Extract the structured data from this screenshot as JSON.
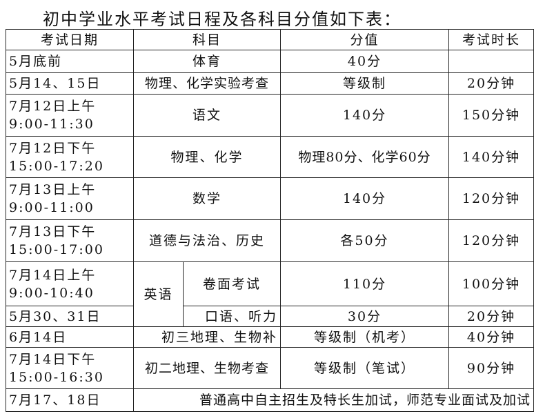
{
  "title": "初中学业水平考试日程及各科目分值如下表：",
  "header": [
    "考试日期",
    "科目",
    "分值",
    "考试时长"
  ],
  "rows": [
    {
      "date": "5月底前",
      "subject": "体育",
      "score": "40分",
      "duration": ""
    },
    {
      "date": "5月14、15日",
      "subject": "物理、化学实验考查",
      "score": "等级制",
      "duration": "20分钟"
    },
    {
      "date": "7月12日上午",
      "time": "9:00-11:30",
      "subject": "语文",
      "score": "140分",
      "duration": "150分钟"
    },
    {
      "date": "7月12日下午",
      "time": "15:00-17:20",
      "subject": "物理、化学",
      "score": "物理80分、化学60分",
      "duration": "140分钟"
    },
    {
      "date": "7月13日上午",
      "time": "9:00-11:00",
      "subject": "数学",
      "score": "140分",
      "duration": "120分钟"
    },
    {
      "date": "7月13日下午",
      "time": "15:00-17:00",
      "subject": "道德与法治、历史",
      "score": "各50分",
      "duration": "120分钟"
    },
    {
      "date": "7月14日上午",
      "time": "9:00-10:40",
      "subject_group": "英语",
      "subject": "卷面考试",
      "score": "110分",
      "duration": "100分钟"
    },
    {
      "date": "5月30、31日",
      "subject": "口语、听力",
      "score": "30分",
      "duration": "20分钟"
    },
    {
      "date": "6月14日",
      "subject": "初三地理、生物补",
      "score": "等级制（机考）",
      "duration": "40分钟"
    },
    {
      "date": "7月14日下午",
      "time": "15:00-16:30",
      "subject": "初二地理、生物考查",
      "score": "等级制（笔试）",
      "duration": "90分钟"
    },
    {
      "date": "7月17、18日",
      "note": "普通高中自主招生及特长生加试，师范专业面试及加试"
    }
  ]
}
